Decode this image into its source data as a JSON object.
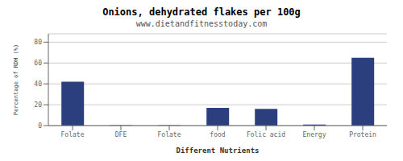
{
  "chart_data": {
    "type": "bar",
    "title": "Onions, dehydrated flakes per 100g",
    "subtitle": "www.dietandfitnesstoday.com",
    "xlabel": "Different Nutrients",
    "ylabel": "Percentage of RDH (%)",
    "categories": [
      "Folate",
      "DFE",
      "Folate",
      "food",
      "Folic acid",
      "Energy",
      "Protein"
    ],
    "values": [
      42,
      0.3,
      0.3,
      17,
      16,
      1,
      65
    ],
    "color": "#2b3f7e",
    "ylim": [
      0,
      88
    ],
    "yticks": [
      0,
      20,
      40,
      60,
      80
    ],
    "grid": true
  }
}
